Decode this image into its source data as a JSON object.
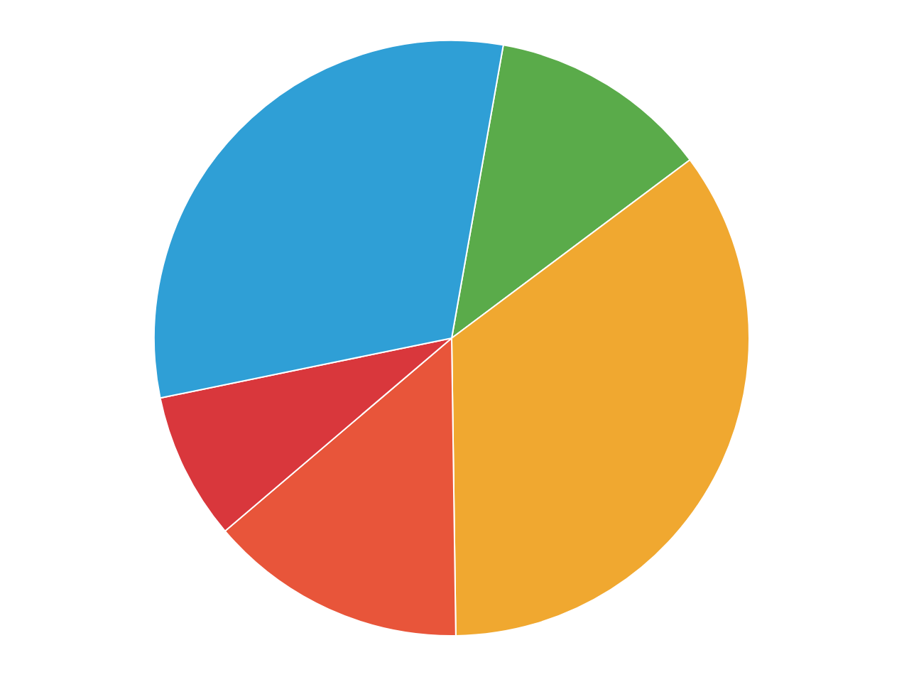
{
  "chart_data": {
    "type": "pie",
    "categories": [
      null,
      null,
      null,
      null,
      null
    ],
    "values": [
      12,
      35,
      14,
      8,
      31
    ],
    "colors": [
      "#5aab4a",
      "#f0a830",
      "#e8553a",
      "#d9373c",
      "#2f9fd6"
    ]
  }
}
